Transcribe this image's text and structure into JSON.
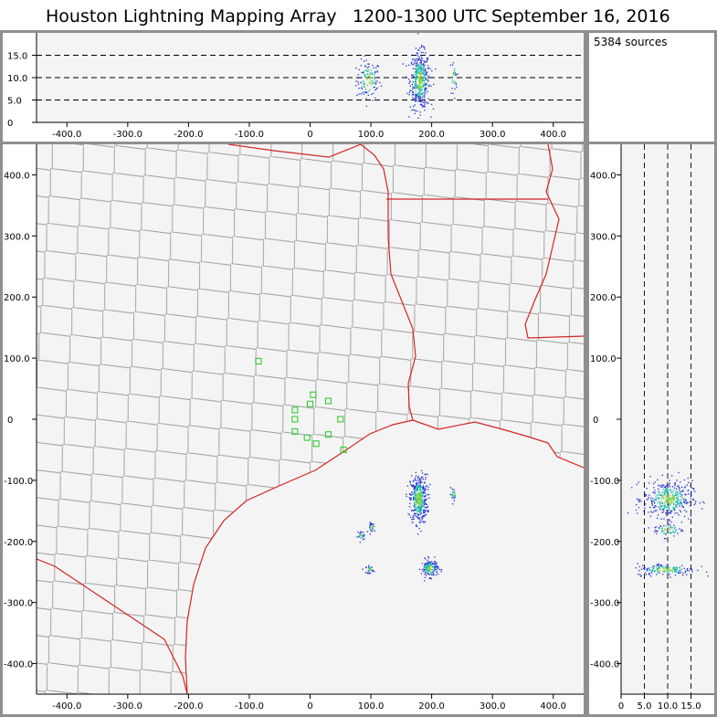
{
  "header": {
    "title": "Houston Lightning Mapping Array",
    "time": "1200-1300 UTC",
    "date": "September 16, 2016"
  },
  "stats": {
    "source_count": "5384 sources"
  },
  "colors": {
    "county_lines": "#9a9a9a",
    "state_lines": "#d42424",
    "coast": "#d42424",
    "stations": "#33cc33",
    "panel_border": "#8f8f8f",
    "frame_bg": "#f4f4f4",
    "density_low": "#1f2fd0",
    "density_mid": "#18b8a8",
    "density_high": "#7fd23a"
  },
  "chart_data": [
    {
      "type": "scatter",
      "name": "altitude-vs-east-west",
      "title": "",
      "xlabel": "",
      "ylabel": "",
      "xlim": [
        -450,
        450
      ],
      "ylim": [
        0,
        20
      ],
      "x_ticks": [
        -400,
        -300,
        -200,
        -100,
        0,
        100,
        200,
        300,
        400
      ],
      "x_tick_labels": [
        "-400.0",
        "-300.0",
        "-200.0",
        "-100.0",
        "0",
        "100.0",
        "200.0",
        "300.0",
        "400.0"
      ],
      "y_ticks": [
        0,
        5,
        10,
        15
      ],
      "y_tick_labels": [
        "0",
        "5.0",
        "10.0",
        "15.0"
      ],
      "dashed_levels": [
        5,
        10,
        15
      ],
      "clusters": [
        {
          "x": 95,
          "z": 9.5,
          "sx": 10,
          "sz": 2.2,
          "n": 120
        },
        {
          "x": 180,
          "z": 9.5,
          "sx": 8,
          "sz": 3.2,
          "n": 420
        },
        {
          "x": 235,
          "z": 10,
          "sx": 3,
          "sz": 2,
          "n": 30
        }
      ]
    },
    {
      "type": "map",
      "name": "plan-view",
      "xlim": [
        -450,
        450
      ],
      "ylim": [
        -450,
        450
      ],
      "x_ticks": [
        -400,
        -300,
        -200,
        -100,
        0,
        100,
        200,
        300,
        400
      ],
      "x_tick_labels": [
        "-400.0",
        "-300.0",
        "-200.0",
        "-100.0",
        "0",
        "100.0",
        "200.0",
        "300.0",
        "400.0"
      ],
      "y_ticks": [
        -400,
        -300,
        -200,
        -100,
        0,
        100,
        200,
        300,
        400
      ],
      "y_tick_labels": [
        "-400.0",
        "-300.0",
        "-200.0",
        "-100.0",
        "0",
        "100.0",
        "200.0",
        "300.0",
        "400.0"
      ],
      "stations": [
        {
          "x": -85,
          "y": 95
        },
        {
          "x": -25,
          "y": 15
        },
        {
          "x": 5,
          "y": 40
        },
        {
          "x": 30,
          "y": 30
        },
        {
          "x": 0,
          "y": 25
        },
        {
          "x": -25,
          "y": 0
        },
        {
          "x": -25,
          "y": -20
        },
        {
          "x": -5,
          "y": -30
        },
        {
          "x": 10,
          "y": -40
        },
        {
          "x": 30,
          "y": -25
        },
        {
          "x": 50,
          "y": 0
        },
        {
          "x": 55,
          "y": -50
        }
      ],
      "clusters": [
        {
          "x": 178,
          "y": -130,
          "sx": 7,
          "sy": 20,
          "n": 420
        },
        {
          "x": 235,
          "y": -122,
          "sx": 3,
          "sy": 5,
          "n": 25
        },
        {
          "x": 83,
          "y": -190,
          "sx": 3,
          "sy": 4,
          "n": 30
        },
        {
          "x": 102,
          "y": -176,
          "sx": 3,
          "sy": 4,
          "n": 30
        },
        {
          "x": 97,
          "y": -245,
          "sx": 3,
          "sy": 3,
          "n": 30
        },
        {
          "x": 196,
          "y": -243,
          "sx": 7,
          "sy": 7,
          "n": 160
        }
      ]
    },
    {
      "type": "scatter",
      "name": "north-south-vs-altitude",
      "xlim": [
        0,
        20
      ],
      "ylim": [
        -450,
        450
      ],
      "x_ticks": [
        0,
        5,
        10,
        15
      ],
      "x_tick_labels": [
        "0",
        "5.0",
        "10.0",
        "15.0"
      ],
      "y_ticks": [
        -400,
        -300,
        -200,
        -100,
        0,
        100,
        200,
        300,
        400
      ],
      "y_tick_labels": [
        "-400.0",
        "-300.0",
        "-200.0",
        "-100.0",
        "0",
        "100.0",
        "200.0",
        "300.0",
        "400.0"
      ],
      "dashed_levels": [
        5,
        10,
        15
      ],
      "clusters": [
        {
          "z": 10,
          "y": -130,
          "sz": 2.6,
          "sy": 15,
          "n": 380
        },
        {
          "z": 10,
          "y": -180,
          "sz": 1.6,
          "sy": 6,
          "n": 60
        },
        {
          "z": 9.5,
          "y": -245,
          "sz": 3.2,
          "sy": 5,
          "n": 160
        }
      ]
    }
  ]
}
